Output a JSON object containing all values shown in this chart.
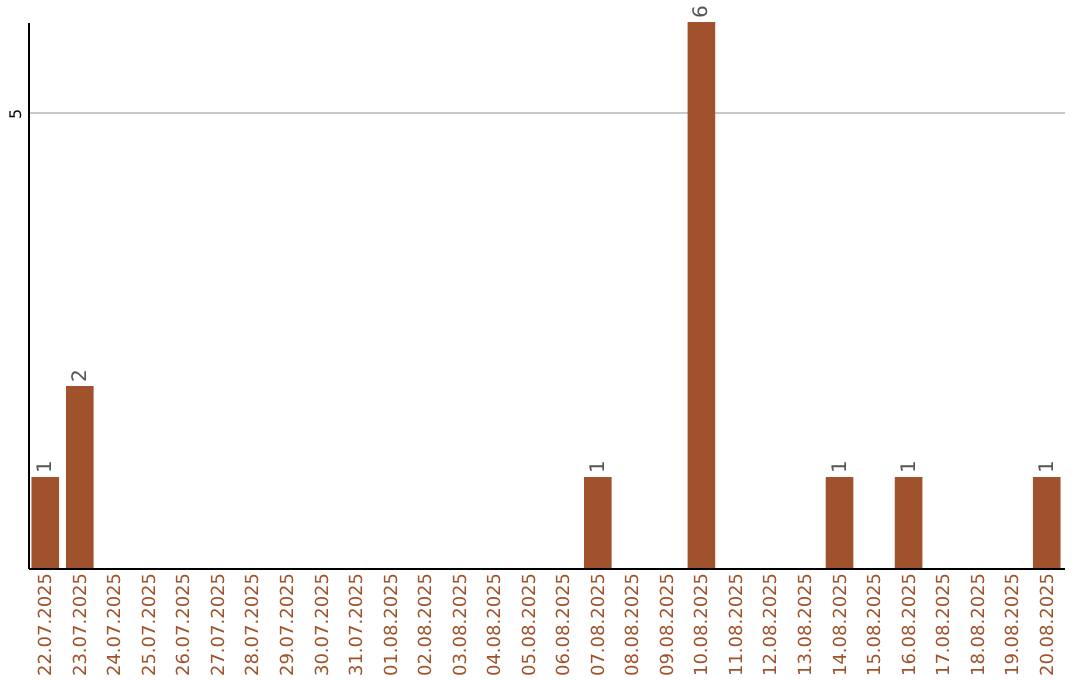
{
  "chart_data": {
    "type": "bar",
    "categories": [
      "22.07.2025",
      "23.07.2025",
      "24.07.2025",
      "25.07.2025",
      "26.07.2025",
      "27.07.2025",
      "28.07.2025",
      "29.07.2025",
      "30.07.2025",
      "31.07.2025",
      "01.08.2025",
      "02.08.2025",
      "03.08.2025",
      "04.08.2025",
      "05.08.2025",
      "06.08.2025",
      "07.08.2025",
      "08.08.2025",
      "09.08.2025",
      "10.08.2025",
      "11.08.2025",
      "12.08.2025",
      "13.08.2025",
      "14.08.2025",
      "15.08.2025",
      "16.08.2025",
      "17.08.2025",
      "18.08.2025",
      "19.08.2025",
      "20.08.2025"
    ],
    "values": [
      1,
      2,
      0,
      0,
      0,
      0,
      0,
      0,
      0,
      0,
      0,
      0,
      0,
      0,
      0,
      0,
      1,
      0,
      0,
      6,
      0,
      0,
      0,
      1,
      0,
      1,
      0,
      0,
      0,
      1
    ],
    "color": "#a0522d",
    "value_labels": [
      "1",
      "2",
      null,
      null,
      null,
      null,
      null,
      null,
      null,
      null,
      null,
      null,
      null,
      null,
      null,
      null,
      "1",
      null,
      null,
      "6",
      null,
      null,
      null,
      "1",
      null,
      "1",
      null,
      null,
      null,
      "1"
    ],
    "ylim": [
      0,
      6
    ],
    "yticks": [
      5
    ],
    "grid": "y"
  }
}
